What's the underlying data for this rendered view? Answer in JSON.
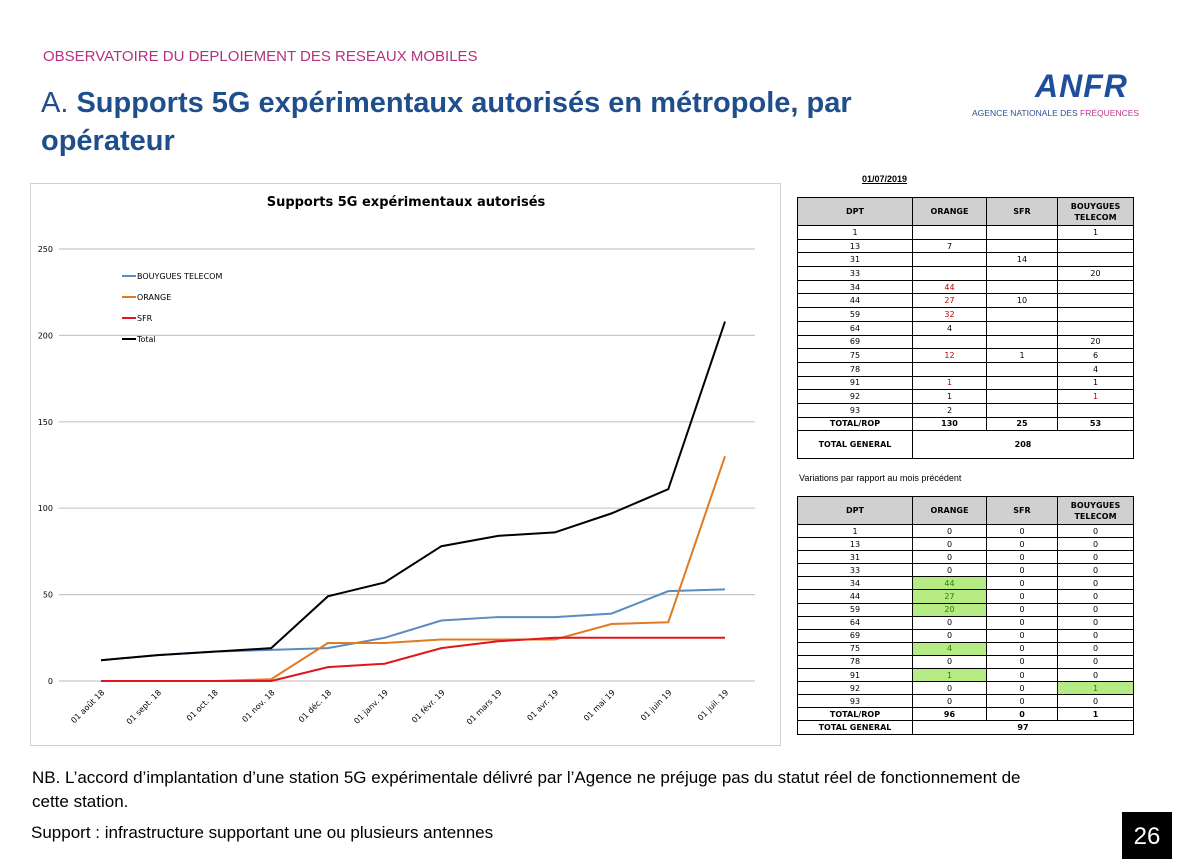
{
  "header": {
    "observatory": "OBSERVATOIRE DU DEPLOIEMENT DES RESEAUX MOBILES",
    "title_prefix": "A.",
    "title": "Supports 5G expérimentaux autorisés en métropole, par opérateur"
  },
  "logo": {
    "name": "ANFR",
    "agency_1": "AGENCE NATIONALE DES",
    "agency_2": "FRÉQUENCES"
  },
  "chart_data": {
    "type": "line",
    "title": "Supports 5G expérimentaux autorisés",
    "categories": [
      "01 août 18",
      "01 sept. 18",
      "01 oct. 18",
      "01 nov. 18",
      "01 déc. 18",
      "01 janv. 19",
      "01 févr. 19",
      "01 mars 19",
      "01 avr. 19",
      "01 mai 19",
      "01 juin 19",
      "01 juil. 19"
    ],
    "ylim": [
      0,
      250
    ],
    "yticks": [
      0,
      50,
      100,
      150,
      200,
      250
    ],
    "grid": true,
    "legend": "top-left",
    "series": [
      {
        "name": "BOUYGUES TELECOM",
        "color": "#5b8bc0",
        "values": [
          12,
          15,
          17,
          18,
          19,
          25,
          35,
          37,
          37,
          39,
          52,
          53
        ]
      },
      {
        "name": "ORANGE",
        "color": "#e07b20",
        "values": [
          0,
          0,
          0,
          1,
          22,
          22,
          24,
          24,
          24,
          33,
          34,
          130
        ]
      },
      {
        "name": "SFR",
        "color": "#e0161b",
        "values": [
          0,
          0,
          0,
          0,
          8,
          10,
          19,
          23,
          25,
          25,
          25,
          25
        ]
      },
      {
        "name": "Total",
        "color": "#000000",
        "values": [
          12,
          15,
          17,
          19,
          49,
          57,
          78,
          84,
          86,
          97,
          111,
          208
        ]
      }
    ]
  },
  "table1": {
    "date": "01/07/2019",
    "headers": [
      "DPT",
      "ORANGE",
      "SFR",
      "BOUYGUES TELECOM"
    ],
    "rows": [
      [
        "1",
        "",
        "",
        "1"
      ],
      [
        "13",
        "7",
        "",
        ""
      ],
      [
        "31",
        "",
        "14",
        ""
      ],
      [
        "33",
        "",
        "",
        "20"
      ],
      [
        "34",
        "44",
        "",
        ""
      ],
      [
        "44",
        "27",
        "10",
        ""
      ],
      [
        "59",
        "32",
        "",
        ""
      ],
      [
        "64",
        "4",
        "",
        ""
      ],
      [
        "69",
        "",
        "",
        "20"
      ],
      [
        "75",
        "12",
        "1",
        "6"
      ],
      [
        "78",
        "",
        "",
        "4"
      ],
      [
        "91",
        "1",
        "",
        "1"
      ],
      [
        "92",
        "1",
        "",
        "1"
      ],
      [
        "93",
        "2",
        "",
        ""
      ]
    ],
    "red_cells": [
      [
        4,
        1
      ],
      [
        5,
        1
      ],
      [
        6,
        1
      ],
      [
        9,
        1
      ],
      [
        11,
        1
      ],
      [
        12,
        3
      ]
    ],
    "total_rop": [
      "TOTAL/ROP",
      "130",
      "25",
      "53"
    ],
    "total_general": [
      "TOTAL GENERAL",
      "208"
    ]
  },
  "variations_label": "Variations par rapport au mois précédent",
  "table2": {
    "headers": [
      "DPT",
      "ORANGE",
      "SFR",
      "BOUYGUES TELECOM"
    ],
    "rows": [
      [
        "1",
        "0",
        "0",
        "0"
      ],
      [
        "13",
        "0",
        "0",
        "0"
      ],
      [
        "31",
        "0",
        "0",
        "0"
      ],
      [
        "33",
        "0",
        "0",
        "0"
      ],
      [
        "34",
        "44",
        "0",
        "0"
      ],
      [
        "44",
        "27",
        "0",
        "0"
      ],
      [
        "59",
        "20",
        "0",
        "0"
      ],
      [
        "64",
        "0",
        "0",
        "0"
      ],
      [
        "69",
        "0",
        "0",
        "0"
      ],
      [
        "75",
        "4",
        "0",
        "0"
      ],
      [
        "78",
        "0",
        "0",
        "0"
      ],
      [
        "91",
        "1",
        "0",
        "0"
      ],
      [
        "92",
        "0",
        "0",
        "1"
      ],
      [
        "93",
        "0",
        "0",
        "0"
      ]
    ],
    "green_cells": [
      [
        4,
        1
      ],
      [
        5,
        1
      ],
      [
        6,
        1
      ],
      [
        9,
        1
      ],
      [
        11,
        1
      ],
      [
        12,
        3
      ]
    ],
    "total_rop": [
      "TOTAL/ROP",
      "96",
      "0",
      "1"
    ],
    "total_general": [
      "TOTAL GENERAL",
      "97"
    ]
  },
  "footer": {
    "nb": "NB. L’accord d’implantation d’une station 5G expérimentale délivré par l’Agence ne préjuge pas du statut réel de fonctionnement de cette station.",
    "support": "Support : infrastructure supportant une ou plusieurs antennes",
    "page": "26"
  }
}
